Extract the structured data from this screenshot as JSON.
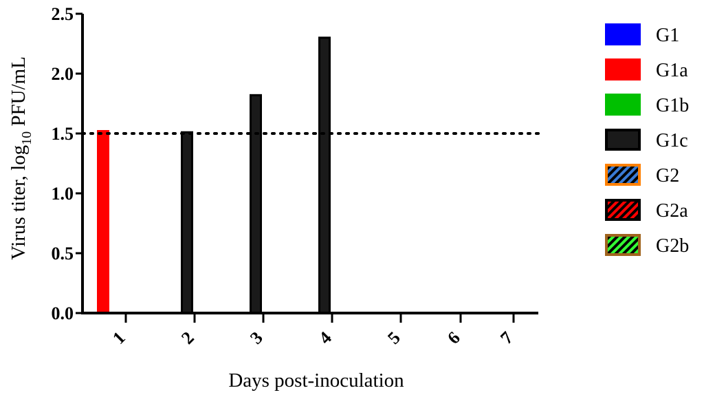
{
  "chart_data": {
    "type": "bar",
    "xlabel": "Days post-inoculation",
    "ylabel": {
      "pre": "Virus titer,  log",
      "sub": "10",
      "post": " PFU/mL"
    },
    "categories": [
      "1",
      "2",
      "3",
      "4",
      "5",
      "6",
      "7"
    ],
    "ylim": [
      0,
      2.5
    ],
    "yticks": [
      "0.0",
      "0.5",
      "1.0",
      "1.5",
      "2.0",
      "2.5"
    ],
    "reference_line": {
      "y": 1.5,
      "style": "dotted"
    },
    "series": [
      {
        "name": "G1",
        "fill": "#0000ff",
        "border": "#0000ff",
        "pattern": "solid",
        "values": [
          0,
          0,
          0,
          0,
          0,
          0,
          0
        ]
      },
      {
        "name": "G1a",
        "fill": "#ff0000",
        "border": "#ff0000",
        "pattern": "solid",
        "values": [
          1.52,
          0,
          0,
          0,
          0,
          0,
          0
        ]
      },
      {
        "name": "G1b",
        "fill": "#00c000",
        "border": "#00c000",
        "pattern": "solid",
        "values": [
          0,
          0,
          0,
          0,
          0,
          0,
          0
        ]
      },
      {
        "name": "G1c",
        "fill": "#1a1a1a",
        "border": "#000000",
        "pattern": "solid",
        "values": [
          0,
          1.51,
          1.82,
          2.3,
          0,
          0,
          0
        ]
      },
      {
        "name": "G2",
        "fill": "#3a7bd5",
        "border": "#ff8000",
        "pattern": "hatch",
        "values": [
          0,
          0,
          0,
          0,
          0,
          0,
          0
        ]
      },
      {
        "name": "G2a",
        "fill": "#ff0000",
        "border": "#000000",
        "pattern": "hatch",
        "values": [
          0,
          0,
          0,
          0,
          0,
          0,
          0
        ]
      },
      {
        "name": "G2b",
        "fill": "#33ff33",
        "border": "#a0641e",
        "pattern": "hatch",
        "values": [
          0,
          0,
          0,
          0,
          0,
          0,
          0
        ]
      }
    ],
    "legend_position": "right",
    "grid": false
  }
}
